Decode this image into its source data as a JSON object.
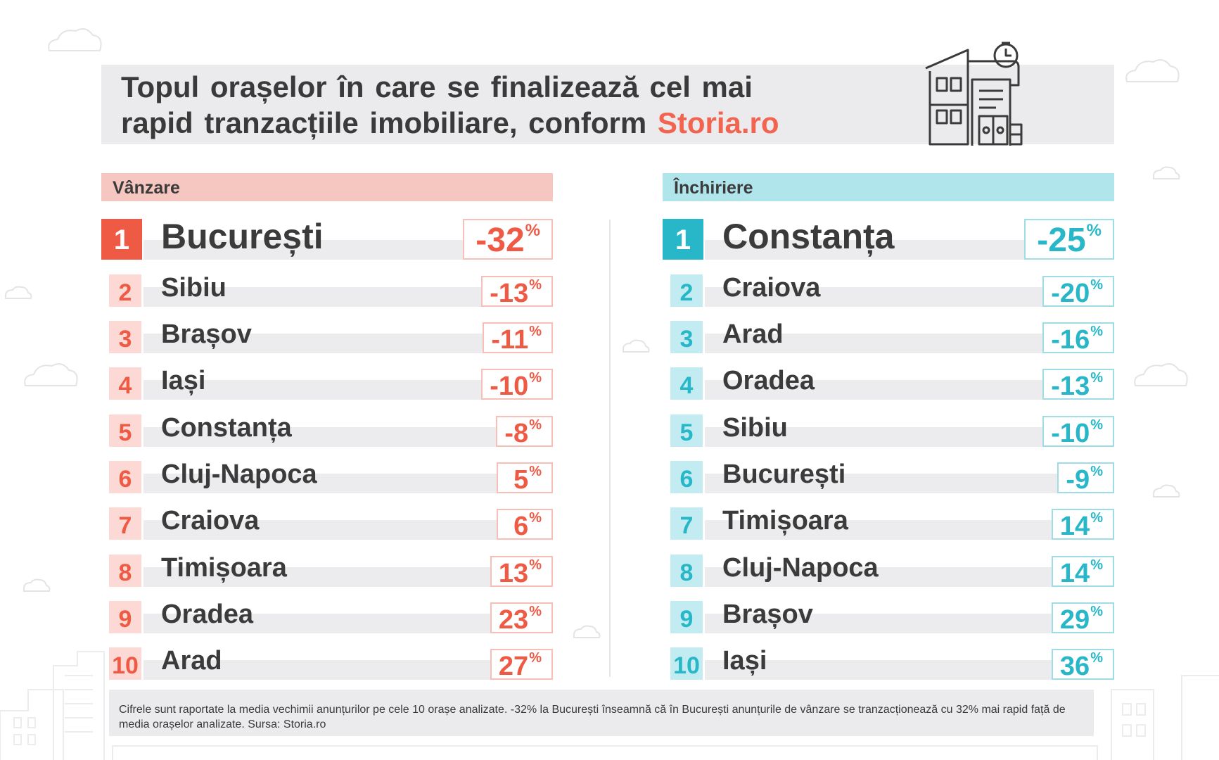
{
  "title": {
    "line1": "Topul orașelor în care se finalizează cel mai",
    "line2_prefix": "rapid tranzacțiile imobiliare, conform ",
    "brand": "Storia.ro"
  },
  "sales": {
    "heading": "Vânzare",
    "rows": [
      {
        "rank": "1",
        "city": "București",
        "value": "-32",
        "unit": "%"
      },
      {
        "rank": "2",
        "city": "Sibiu",
        "value": "-13",
        "unit": "%"
      },
      {
        "rank": "3",
        "city": "Brașov",
        "value": "-11",
        "unit": "%"
      },
      {
        "rank": "4",
        "city": "Iași",
        "value": "-10",
        "unit": "%"
      },
      {
        "rank": "5",
        "city": "Constanța",
        "value": "-8",
        "unit": "%"
      },
      {
        "rank": "6",
        "city": "Cluj-Napoca",
        "value": "5",
        "unit": "%"
      },
      {
        "rank": "7",
        "city": "Craiova",
        "value": "6",
        "unit": "%"
      },
      {
        "rank": "8",
        "city": "Timișoara",
        "value": "13",
        "unit": "%"
      },
      {
        "rank": "9",
        "city": "Oradea",
        "value": "23",
        "unit": "%"
      },
      {
        "rank": "10",
        "city": "Arad",
        "value": "27",
        "unit": "%"
      }
    ]
  },
  "rentals": {
    "heading": "Închiriere",
    "rows": [
      {
        "rank": "1",
        "city": "Constanța",
        "value": "-25",
        "unit": "%"
      },
      {
        "rank": "2",
        "city": "Craiova",
        "value": "-20",
        "unit": "%"
      },
      {
        "rank": "3",
        "city": "Arad",
        "value": "-16",
        "unit": "%"
      },
      {
        "rank": "4",
        "city": "Oradea",
        "value": "-13",
        "unit": "%"
      },
      {
        "rank": "5",
        "city": "Sibiu",
        "value": "-10",
        "unit": "%"
      },
      {
        "rank": "6",
        "city": "București",
        "value": "-9",
        "unit": "%"
      },
      {
        "rank": "7",
        "city": "Timișoara",
        "value": "14",
        "unit": "%"
      },
      {
        "rank": "8",
        "city": "Cluj-Napoca",
        "value": "14",
        "unit": "%"
      },
      {
        "rank": "9",
        "city": "Brașov",
        "value": "29",
        "unit": "%"
      },
      {
        "rank": "10",
        "city": "Iași",
        "value": "36",
        "unit": "%"
      }
    ]
  },
  "footnote": "Cifrele sunt raportate la media vechimii anunțurilor pe cele 10 orașe analizate. -32% la București înseamnă că în București anunțurile de vânzare se tranzacționează cu 32% mai rapid față de media orașelor analizate. Sursa: Storia.ro",
  "icons": {
    "header": "house-with-clock-icon",
    "background": [
      "cloud-icon",
      "city-skyline"
    ]
  },
  "colors": {
    "sales_accent": "#ef5a45",
    "sales_light": "#f6c6c0",
    "rent_accent": "#27b7c8",
    "rent_light": "#b0e5ec",
    "text": "#3b3b3b",
    "stripe": "#ececee"
  }
}
